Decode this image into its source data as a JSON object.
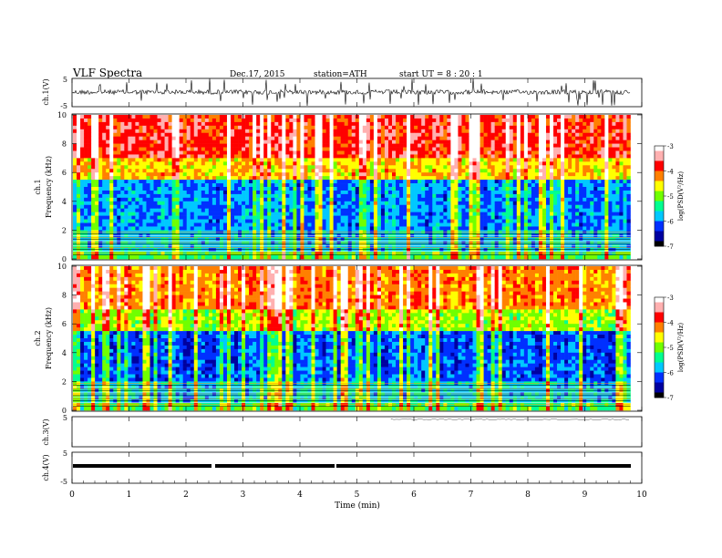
{
  "header": {
    "title": "VLF  Spectra",
    "date": "Dec.17, 2015",
    "station": "station=ATH",
    "start_ut": "start  UT =   8 : 20 : 1"
  },
  "colors": {
    "spectrogram_scale": [
      "#000000",
      "#0000a0",
      "#0030ff",
      "#00c8ff",
      "#00ff90",
      "#70ff00",
      "#ffff00",
      "#ff8000",
      "#ff0000",
      "#ffb0b0",
      "#ffffff"
    ]
  },
  "chart_data": [
    {
      "type": "line",
      "ylabel": "ch.1(V)",
      "ylim": [
        -5,
        5
      ],
      "ytick_labels": [
        "5",
        "-5"
      ],
      "description_of_signal": "noisy trace near 0 V with frequent spikes"
    },
    {
      "type": "heatmap",
      "ylabel": "ch.1\nFrequency (kHz)",
      "ylim": [
        0,
        10
      ],
      "ytick_labels": [
        "0",
        "2",
        "4",
        "6",
        "8",
        "10"
      ],
      "colorbar": {
        "label": "log(PSD(V²/Hz)",
        "range": [
          -7,
          -3
        ],
        "tick_labels": [
          "-3",
          "-4",
          "-5",
          "-6",
          "-7"
        ]
      }
    },
    {
      "type": "heatmap",
      "ylabel": "ch.2\nFrequency (kHz)",
      "ylim": [
        0,
        10
      ],
      "ytick_labels": [
        "0",
        "2",
        "4",
        "6",
        "8",
        "10"
      ],
      "colorbar": {
        "label": "log(PSD(V²/Hz)",
        "range": [
          -7,
          -3
        ],
        "tick_labels": [
          "-3",
          "-4",
          "-5",
          "-6",
          "-7"
        ]
      }
    },
    {
      "type": "line",
      "ylabel": "ch.3(V)",
      "ylim": [
        -5,
        5
      ],
      "ytick_labels": [
        "5"
      ]
    },
    {
      "type": "line",
      "ylabel": "ch.4(V)",
      "ylim": [
        -5,
        5
      ],
      "ytick_labels": [
        "5",
        "-5"
      ],
      "constant_value": -0.5
    }
  ],
  "x_axis": {
    "xlabel": "Time  (min)",
    "xlim": [
      0,
      10
    ],
    "tick_labels": [
      "0",
      "1",
      "2",
      "3",
      "4",
      "5",
      "6",
      "7",
      "8",
      "9",
      "10"
    ],
    "data_end_min": 9.8
  }
}
